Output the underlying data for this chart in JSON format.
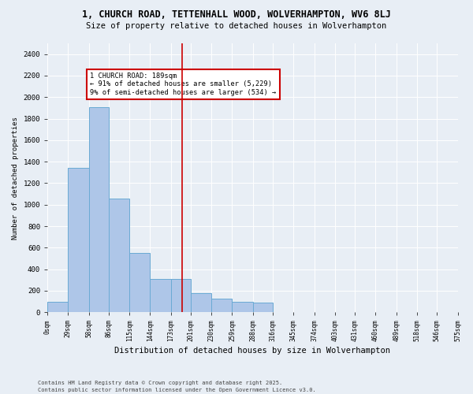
{
  "title": "1, CHURCH ROAD, TETTENHALL WOOD, WOLVERHAMPTON, WV6 8LJ",
  "subtitle": "Size of property relative to detached houses in Wolverhampton",
  "xlabel": "Distribution of detached houses by size in Wolverhampton",
  "ylabel": "Number of detached properties",
  "footer1": "Contains HM Land Registry data © Crown copyright and database right 2025.",
  "footer2": "Contains public sector information licensed under the Open Government Licence v3.0.",
  "annotation_title": "1 CHURCH ROAD: 189sqm",
  "annotation_line1": "← 91% of detached houses are smaller (5,229)",
  "annotation_line2": "9% of semi-detached houses are larger (534) →",
  "marker_value": 189,
  "bin_edges": [
    0,
    29,
    58,
    86,
    115,
    144,
    173,
    201,
    230,
    259,
    288,
    316,
    345,
    374,
    403,
    431,
    460,
    489,
    518,
    546,
    575
  ],
  "bar_heights": [
    100,
    1340,
    1910,
    1060,
    550,
    310,
    310,
    175,
    130,
    100,
    90,
    0,
    0,
    0,
    0,
    0,
    0,
    0,
    0,
    0
  ],
  "bar_color": "#aec6e8",
  "bar_edge_color": "#6aaad4",
  "marker_color": "#cc0000",
  "annotation_box_color": "#cc0000",
  "bg_color": "#e8eef5",
  "ylim": [
    0,
    2500
  ],
  "yticks": [
    0,
    200,
    400,
    600,
    800,
    1000,
    1200,
    1400,
    1600,
    1800,
    2000,
    2200,
    2400
  ],
  "tick_labels": [
    "0sqm",
    "29sqm",
    "58sqm",
    "86sqm",
    "115sqm",
    "144sqm",
    "173sqm",
    "201sqm",
    "230sqm",
    "259sqm",
    "288sqm",
    "316sqm",
    "345sqm",
    "374sqm",
    "403sqm",
    "431sqm",
    "460sqm",
    "489sqm",
    "518sqm",
    "546sqm",
    "575sqm"
  ]
}
